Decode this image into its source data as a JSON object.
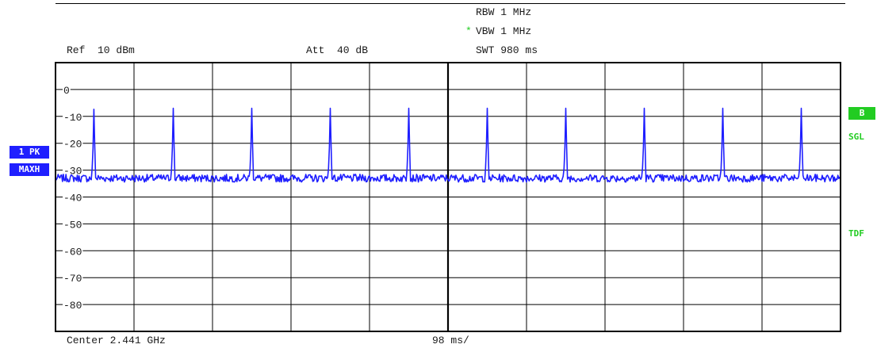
{
  "header": {
    "rbw": "RBW 1 MHz",
    "vbw_star": "*",
    "vbw": "VBW 1 MHz",
    "swt": "SWT 980 ms",
    "ref": "Ref  10 dBm",
    "att": "Att  40 dB"
  },
  "left_badges": {
    "trace_mode": "1 PK",
    "detector": "MAXH"
  },
  "right_badges": {
    "trig": "B",
    "sgl": "SGL",
    "tdf": "TDF"
  },
  "footer": {
    "center": "Center 2.441 GHz",
    "span": "98 ms/"
  },
  "colors": {
    "trace": "#1f1fff",
    "badge": "#1f1fff",
    "accent": "#22cc22"
  },
  "chart_data": {
    "type": "line",
    "ylim": [
      -90,
      10
    ],
    "y_ticks": [
      {
        "value": 0,
        "label": "0"
      },
      {
        "value": -10,
        "label": "-10"
      },
      {
        "value": -20,
        "label": "-20"
      },
      {
        "value": -30,
        "label": "-30"
      },
      {
        "value": -40,
        "label": "-40"
      },
      {
        "value": -50,
        "label": "-50"
      },
      {
        "value": -60,
        "label": "-60"
      },
      {
        "value": -70,
        "label": "-70"
      },
      {
        "value": -80,
        "label": "-80"
      }
    ],
    "xlim": [
      0,
      980
    ],
    "x_unit": "ms",
    "grid": true,
    "series": [
      {
        "baseline": -33,
        "noise": 0.8,
        "pulse_times_ms": [
          48,
          147,
          245,
          343,
          441,
          539,
          637,
          735,
          833,
          931
        ],
        "pulse_peak_dBm": [
          -7,
          -7,
          -7,
          -7,
          -7,
          -7,
          -7,
          -7,
          -7,
          -7
        ]
      }
    ]
  }
}
